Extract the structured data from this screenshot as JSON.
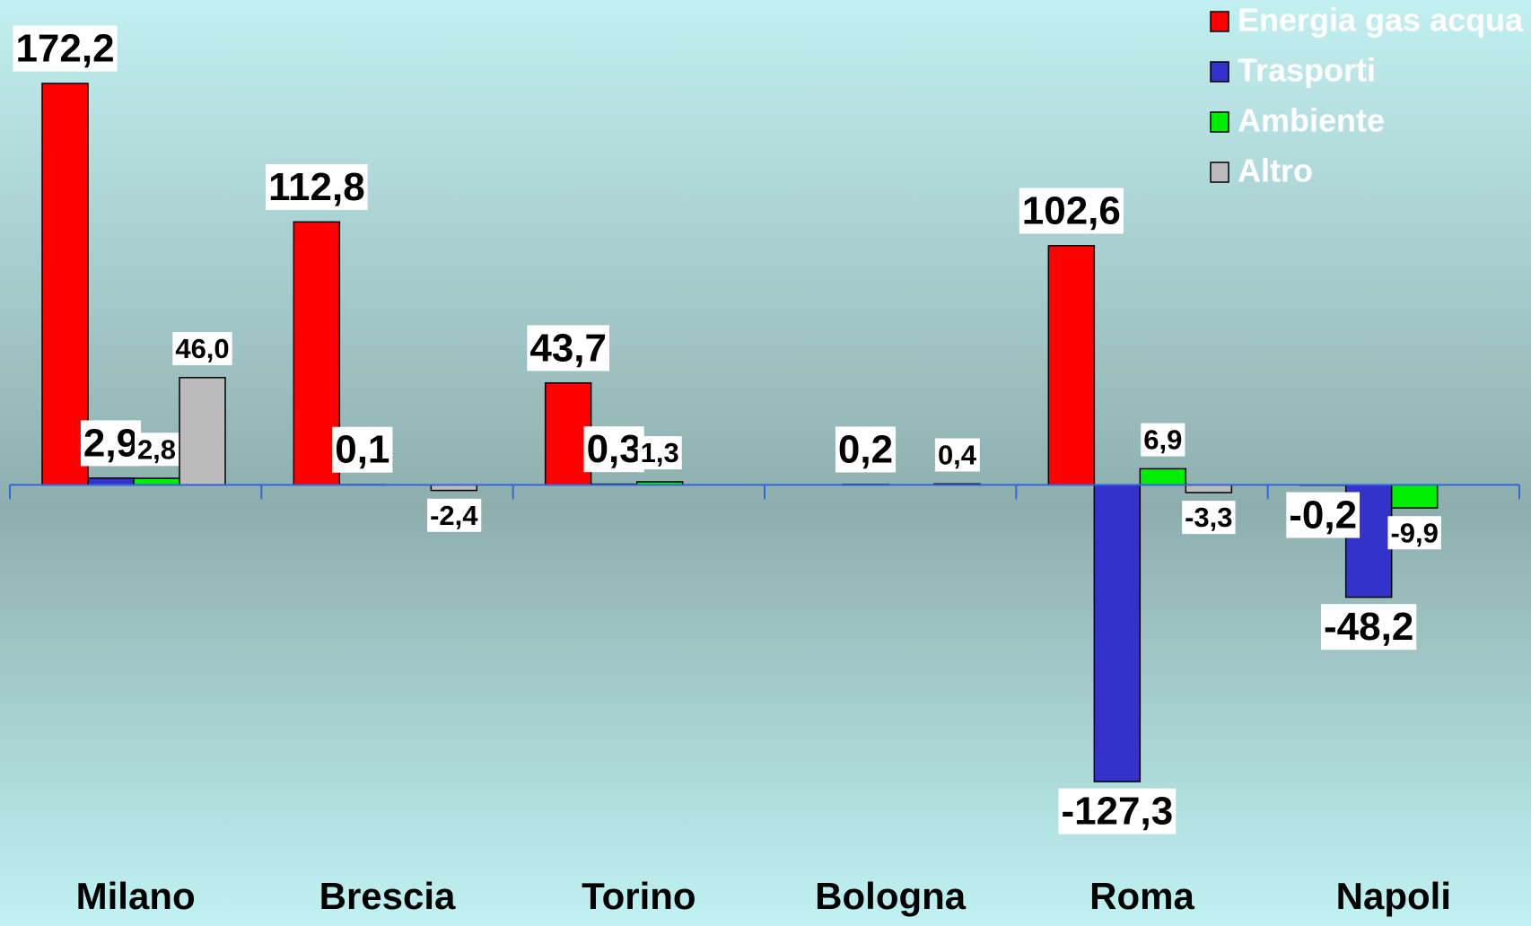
{
  "chart_data": {
    "type": "bar",
    "categories": [
      "Milano",
      "Brescia",
      "Torino",
      "Bologna",
      "Roma",
      "Napoli"
    ],
    "series": [
      {
        "name": "Energia gas acqua",
        "color": "#ff0000",
        "values": [
          172.2,
          112.8,
          43.7,
          null,
          102.6,
          -0.2
        ],
        "value_labels": [
          "172,2",
          "112,8",
          "43,7",
          null,
          "102,6",
          "-0,2"
        ]
      },
      {
        "name": "Trasporti",
        "color": "#3333cc",
        "values": [
          2.9,
          0.1,
          0.3,
          0.2,
          -127.3,
          -48.2
        ],
        "value_labels": [
          "2,9",
          "0,1",
          "0,3",
          "0,2",
          "-127,3",
          "-48,2"
        ]
      },
      {
        "name": "Ambiente",
        "color": "#00ee00",
        "values": [
          2.8,
          null,
          1.3,
          null,
          6.9,
          -9.9
        ],
        "value_labels": [
          "2,8",
          null,
          "1,3",
          null,
          "6,9",
          "-9,9"
        ]
      },
      {
        "name": "Altro",
        "color": "#bbbbbb",
        "values": [
          46.0,
          -2.4,
          null,
          0.4,
          -3.3,
          null
        ],
        "value_labels": [
          "46,0",
          "-2,4",
          null,
          "0,4",
          "-3,3",
          null
        ]
      }
    ],
    "ylim": [
      -165,
      208
    ],
    "legend": "top-right"
  }
}
